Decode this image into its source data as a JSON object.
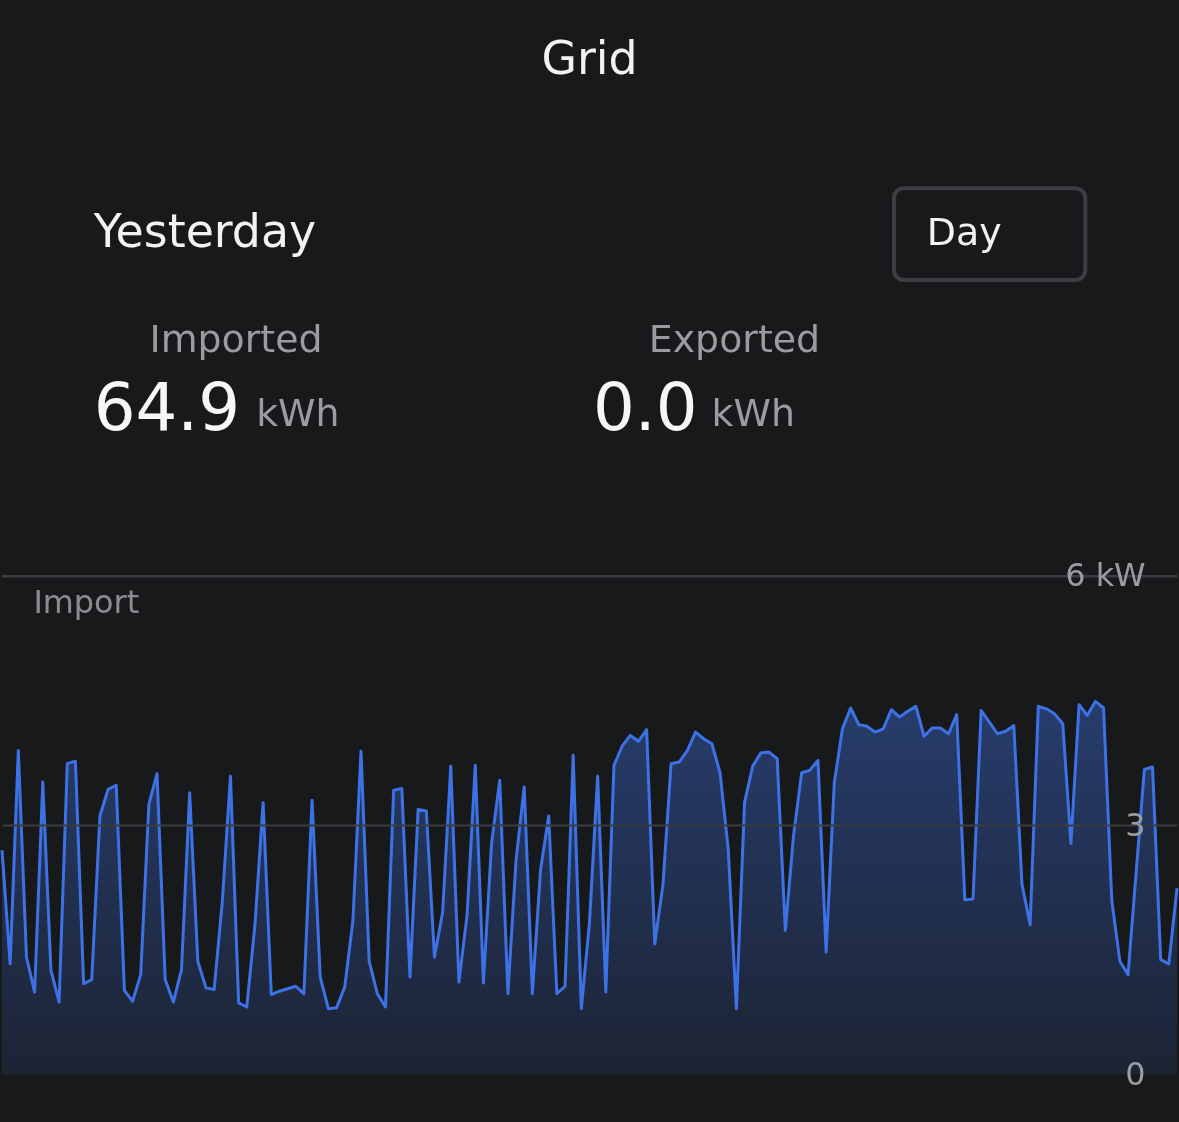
{
  "chart_data": {
    "type": "area",
    "title": "Grid",
    "subtitle": "Yesterday",
    "ylabel": "Import",
    "annotations": [
      "Day",
      "Imported",
      "64.9",
      "kWh",
      "Exported",
      "0.0",
      "kWh"
    ],
    "color": "#3d72e6",
    "categories": [
      null,
      null,
      null,
      null,
      null,
      null,
      null,
      null,
      null,
      null,
      null,
      null,
      null,
      null,
      null,
      null,
      null,
      null,
      null,
      null,
      null,
      null,
      null,
      null,
      null,
      null,
      null,
      null,
      null,
      null,
      null,
      null,
      null,
      null,
      null,
      null,
      null,
      null,
      null,
      null,
      null,
      null,
      null,
      null,
      null,
      null,
      null,
      null,
      null,
      null,
      null,
      null,
      null,
      null,
      null,
      null,
      null,
      null,
      null,
      null,
      null,
      null,
      null,
      null,
      null,
      null,
      null,
      null,
      null,
      null,
      null,
      null,
      null,
      null,
      null,
      null,
      null,
      null,
      null,
      null,
      null,
      null,
      null,
      null,
      null,
      null,
      null,
      null,
      null,
      null,
      null,
      null,
      null,
      null,
      null,
      null,
      null,
      null,
      null,
      null,
      null,
      null,
      null,
      null,
      null,
      null,
      null,
      null,
      null,
      null,
      null,
      null,
      null,
      null,
      null,
      null,
      null,
      null,
      null,
      null,
      null,
      null,
      null,
      null,
      null,
      null,
      null,
      null,
      null,
      null,
      null,
      null,
      null,
      null,
      null,
      null,
      null,
      null,
      null,
      null,
      null,
      null,
      null,
      null,
      null
    ],
    "values": [
      2.7,
      1.33,
      3.9,
      1.41,
      0.99,
      3.52,
      1.25,
      0.87,
      3.74,
      3.77,
      1.09,
      1.14,
      3.11,
      3.43,
      3.48,
      1.01,
      0.88,
      1.2,
      3.25,
      3.62,
      1.14,
      0.87,
      1.26,
      3.39,
      1.36,
      1.04,
      1.02,
      2.08,
      3.59,
      0.86,
      0.81,
      1.8,
      3.27,
      0.96,
      1.0,
      1.03,
      1.06,
      0.97,
      3.3,
      1.17,
      0.79,
      0.8,
      1.05,
      1.84,
      3.89,
      1.36,
      0.97,
      0.81,
      3.42,
      3.44,
      1.17,
      3.19,
      3.17,
      1.41,
      1.95,
      3.71,
      1.11,
      1.92,
      3.72,
      1.1,
      2.78,
      3.54,
      0.97,
      2.58,
      3.46,
      0.97,
      2.46,
      3.11,
      0.97,
      1.06,
      3.84,
      0.79,
      1.83,
      3.59,
      0.99,
      3.72,
      3.95,
      4.08,
      4.01,
      4.15,
      1.57,
      2.28,
      3.74,
      3.76,
      3.9,
      4.12,
      4.04,
      3.98,
      3.63,
      2.71,
      0.79,
      3.27,
      3.71,
      3.87,
      3.88,
      3.8,
      1.73,
      2.87,
      3.63,
      3.66,
      3.78,
      1.47,
      3.51,
      4.16,
      4.41,
      4.21,
      4.19,
      4.12,
      4.16,
      4.39,
      4.3,
      4.37,
      4.43,
      4.07,
      4.17,
      4.17,
      4.1,
      4.33,
      2.1,
      2.11,
      4.38,
      4.24,
      4.1,
      4.13,
      4.2,
      2.29,
      1.8,
      4.43,
      4.4,
      4.34,
      4.22,
      2.78,
      4.45,
      4.32,
      4.49,
      4.41,
      2.1,
      1.36,
      1.2,
      2.44,
      3.67,
      3.7,
      1.38,
      1.33,
      2.24
    ],
    "ylim": [
      0,
      6
    ],
    "yticks": [
      0,
      3,
      {
        "value": 6,
        "label": "6 kW"
      }
    ],
    "grid": "y",
    "tick_labels": "y"
  }
}
